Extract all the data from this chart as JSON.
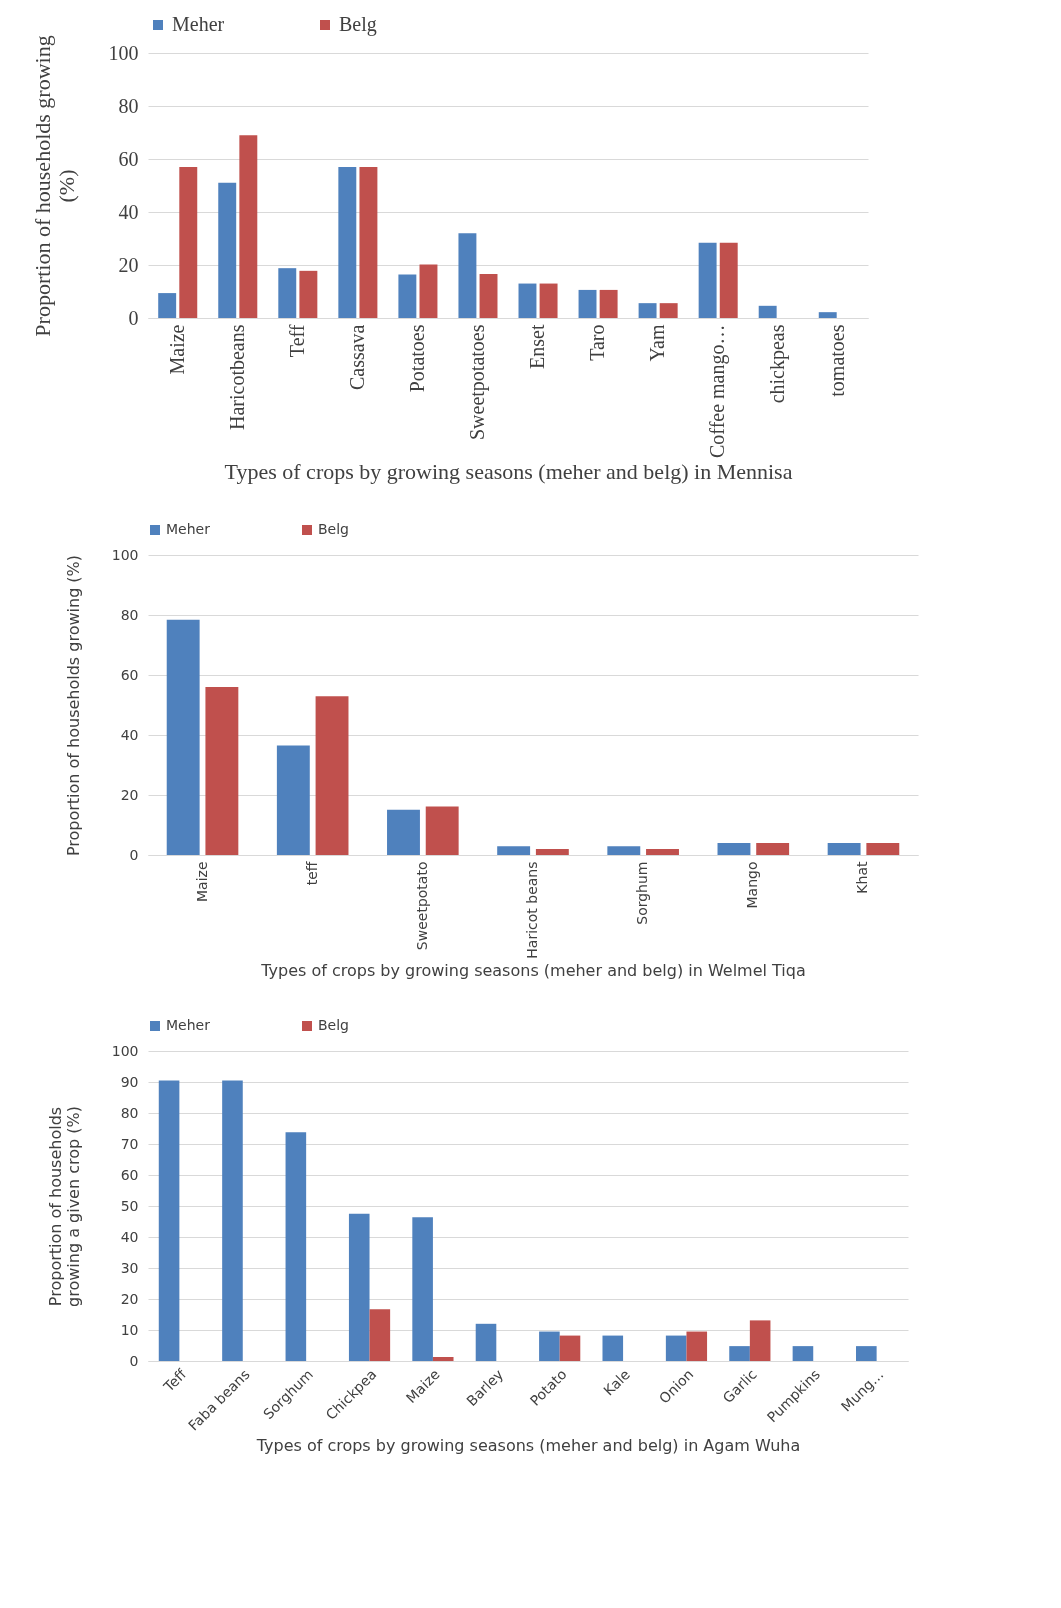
{
  "chart_data": [
    {
      "type": "bar",
      "xlabel": "Types of crops by growing seasons (meher and belg) in Mennisa",
      "ylabel": "Proportion of households growing (%)",
      "categories": [
        "Maize",
        "Haricotbeans",
        "Teff",
        "Cassava",
        "Potatoes",
        "Sweetpotatoes",
        "Enset",
        "Taro",
        "Yam",
        "Coffee mango…",
        "chickpeas",
        "tomatoes"
      ],
      "series": [
        {
          "name": "Meher",
          "color": "#4f81bd",
          "values": [
            9.4,
            51,
            18.8,
            57,
            16.4,
            32,
            13,
            10.6,
            5.6,
            28.4,
            4.6,
            2.2
          ]
        },
        {
          "name": "Belg",
          "color": "#c0504d",
          "values": [
            57,
            69,
            17.8,
            57,
            20.2,
            16.6,
            13,
            10.6,
            5.6,
            28.4,
            null,
            null
          ]
        }
      ],
      "ylim": [
        0,
        100
      ],
      "yticks": [
        0,
        20,
        40,
        60,
        80,
        100
      ],
      "grid": "y",
      "legend": "top"
    },
    {
      "type": "bar",
      "xlabel": "Types of crops by growing seasons (meher and belg) in Welmel Tiqa",
      "ylabel": "Proportion of households growing (%)",
      "categories": [
        "Maize",
        "teff",
        "Sweetpotato",
        "Haricot beans",
        "Sorghum",
        "Mango",
        "Khat"
      ],
      "series": [
        {
          "name": "Meher",
          "color": "#4f81bd",
          "values": [
            78.4,
            36.5,
            15.1,
            2.9,
            2.9,
            4,
            4
          ]
        },
        {
          "name": "Belg",
          "color": "#c0504d",
          "values": [
            56,
            52.9,
            16.2,
            2,
            2,
            4,
            4
          ]
        }
      ],
      "ylim": [
        0,
        100
      ],
      "yticks": [
        0,
        20,
        40,
        60,
        80,
        100
      ],
      "grid": "y",
      "legend": "top"
    },
    {
      "type": "bar",
      "xlabel": "Types of crops by growing seasons (meher and belg) in Agam Wuha",
      "ylabel": "Proportion of households growing a given crop (%)",
      "categories": [
        "Teff",
        "Faba beans",
        "Sorghum",
        "Chickpea",
        "Maize",
        "Barley",
        "Potato",
        "Kale",
        "Onion",
        "Garlic",
        "Pumpkins",
        "Mung…"
      ],
      "series": [
        {
          "name": "Meher",
          "color": "#4f81bd",
          "values": [
            90.5,
            90.5,
            73.8,
            47.5,
            46.4,
            12,
            9.5,
            8.2,
            8.2,
            4.8,
            4.8,
            4.8
          ]
        },
        {
          "name": "Belg",
          "color": "#c0504d",
          "values": [
            null,
            null,
            null,
            16.7,
            1.3,
            null,
            8.2,
            null,
            9.5,
            13.1,
            null,
            null
          ]
        }
      ],
      "ylim": [
        0,
        100
      ],
      "yticks": [
        0,
        10,
        20,
        30,
        40,
        50,
        60,
        70,
        80,
        90,
        100
      ],
      "grid": "y",
      "legend": "top"
    }
  ]
}
